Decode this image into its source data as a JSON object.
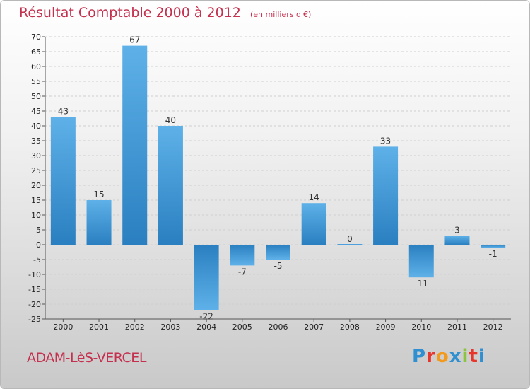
{
  "header": {
    "title": "Résultat Comptable 2000 à 2012",
    "subtitle": "(en milliers d'€)"
  },
  "footer": {
    "commune": "ADAM-LèS-VERCEL",
    "brand_letters": [
      "P",
      "r",
      "o",
      "x",
      "i",
      "t",
      "i"
    ],
    "brand_colors": [
      "#2f8fd1",
      "#e8352b",
      "#f29a1d",
      "#2f8fd1",
      "#8bc53f",
      "#e8352b",
      "#2f8fd1"
    ]
  },
  "colors": {
    "bar_light": "#5eb1e8",
    "bar_dark": "#2a7fc0",
    "grid": "#cfcfcf",
    "title": "#c4304e"
  },
  "chart_data": {
    "type": "bar",
    "title": "Résultat Comptable 2000 à 2012",
    "subtitle": "(en milliers d'€)",
    "categories": [
      "2000",
      "2001",
      "2002",
      "2003",
      "2004",
      "2005",
      "2006",
      "2007",
      "2008",
      "2009",
      "2010",
      "2011",
      "2012"
    ],
    "values": [
      43,
      15,
      67,
      40,
      -22,
      -7,
      -5,
      14,
      0,
      33,
      -11,
      3,
      -1
    ],
    "labels": [
      "43",
      "15",
      "67",
      "40",
      "-22",
      "-7",
      "-5",
      "14",
      "0",
      "33",
      "-11",
      "3",
      "-1"
    ],
    "ylim": [
      -25,
      70
    ],
    "yticks": [
      -25,
      -20,
      -15,
      -10,
      -5,
      0,
      5,
      10,
      15,
      20,
      25,
      30,
      35,
      40,
      45,
      50,
      55,
      60,
      65,
      70
    ],
    "xlabel": "",
    "ylabel": "",
    "grid": true
  }
}
